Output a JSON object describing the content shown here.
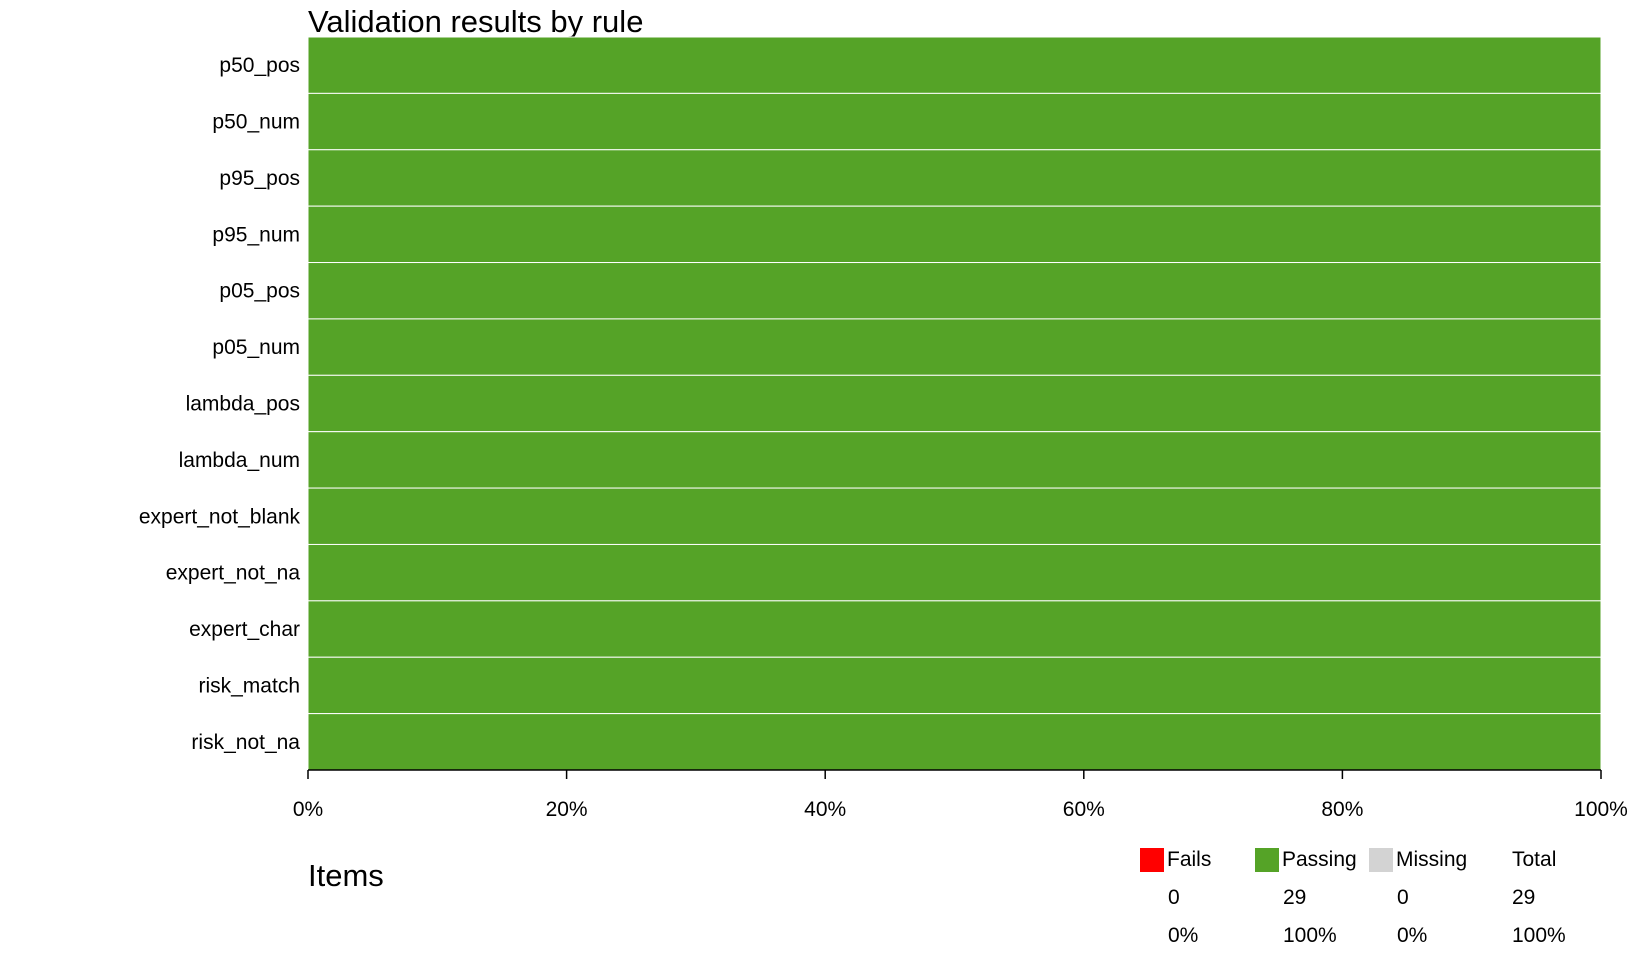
{
  "title": "Validation results by rule",
  "items_label": "Items",
  "colors": {
    "fails": "#ff0000",
    "passing": "#55a327",
    "missing": "#d3d3d3"
  },
  "chart_data": {
    "type": "bar",
    "orientation": "horizontal",
    "stacked": true,
    "categories": [
      "p50_pos",
      "p50_num",
      "p95_pos",
      "p95_num",
      "p05_pos",
      "p05_num",
      "lambda_pos",
      "lambda_num",
      "expert_not_blank",
      "expert_not_na",
      "expert_char",
      "risk_match",
      "risk_not_na"
    ],
    "series": [
      {
        "name": "Fails",
        "values": [
          0,
          0,
          0,
          0,
          0,
          0,
          0,
          0,
          0,
          0,
          0,
          0,
          0
        ]
      },
      {
        "name": "Passing",
        "values": [
          100,
          100,
          100,
          100,
          100,
          100,
          100,
          100,
          100,
          100,
          100,
          100,
          100
        ]
      },
      {
        "name": "Missing",
        "values": [
          0,
          0,
          0,
          0,
          0,
          0,
          0,
          0,
          0,
          0,
          0,
          0,
          0
        ]
      }
    ],
    "xlim": [
      0,
      100
    ],
    "xticks": [
      0,
      20,
      40,
      60,
      80,
      100
    ],
    "xtick_labels": [
      "0%",
      "20%",
      "40%",
      "60%",
      "80%",
      "100%"
    ],
    "grid": false
  },
  "legend": {
    "fails": {
      "label": "Fails",
      "count": "0",
      "pct": "0%"
    },
    "passing": {
      "label": "Passing",
      "count": "29",
      "pct": "100%"
    },
    "missing": {
      "label": "Missing",
      "count": "0",
      "pct": "0%"
    },
    "total": {
      "label": "Total",
      "count": "29",
      "pct": "100%"
    }
  }
}
